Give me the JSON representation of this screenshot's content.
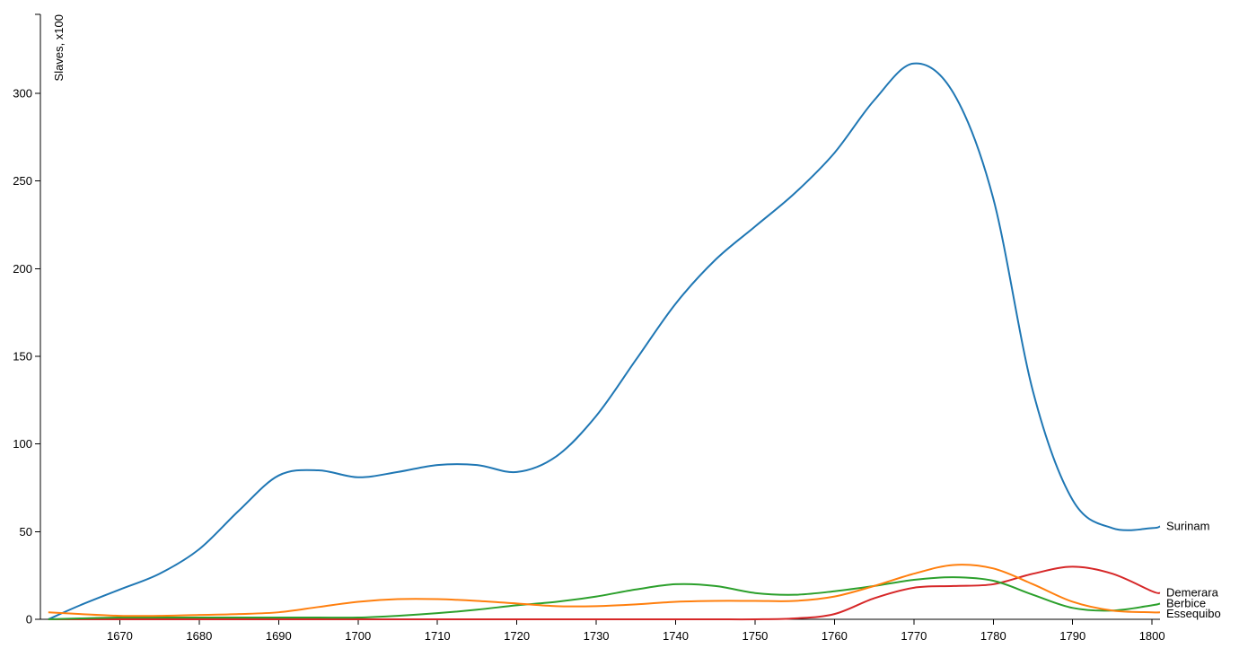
{
  "chart_data": {
    "type": "line",
    "title": "",
    "xlabel": "",
    "ylabel": "Slaves, x100",
    "xlim": [
      1660,
      1801
    ],
    "ylim": [
      0,
      345
    ],
    "grid": false,
    "legend": "inline-right",
    "xticks": [
      1670,
      1680,
      1690,
      1700,
      1710,
      1720,
      1730,
      1740,
      1750,
      1760,
      1770,
      1780,
      1790,
      1800
    ],
    "yticks": [
      0,
      50,
      100,
      150,
      200,
      250,
      300
    ],
    "x": [
      1661,
      1665,
      1670,
      1675,
      1680,
      1685,
      1690,
      1695,
      1700,
      1705,
      1710,
      1715,
      1720,
      1725,
      1730,
      1735,
      1740,
      1745,
      1750,
      1755,
      1760,
      1765,
      1770,
      1775,
      1780,
      1785,
      1790,
      1795,
      1800,
      1801
    ],
    "series": [
      {
        "name": "Surinam",
        "color": "#1f77b4",
        "values": [
          0,
          8,
          17,
          26,
          40,
          62,
          82,
          85,
          81,
          84,
          88,
          88,
          84,
          93,
          116,
          148,
          180,
          205,
          224,
          243,
          266,
          296,
          317,
          300,
          240,
          130,
          68,
          52,
          52,
          53
        ]
      },
      {
        "name": "Demerara",
        "color": "#d62728",
        "values": [
          0,
          0,
          0,
          0,
          0,
          0,
          0,
          0,
          0,
          0,
          0,
          0,
          0,
          0,
          0,
          0,
          0,
          0,
          0,
          0.5,
          3,
          12,
          18,
          19,
          20,
          26,
          30,
          26,
          16,
          15
        ]
      },
      {
        "name": "Berbice",
        "color": "#2ca02c",
        "values": [
          0,
          0.5,
          1,
          1,
          1,
          1,
          1,
          1,
          1,
          2,
          3.5,
          5.5,
          8,
          10,
          13,
          17,
          20,
          19,
          15,
          14,
          16,
          19,
          22.5,
          24,
          22,
          14,
          6.5,
          5,
          8,
          9
        ]
      },
      {
        "name": "Essequibo",
        "color": "#ff7f0e",
        "values": [
          4,
          3,
          2,
          2,
          2.5,
          3,
          4,
          7,
          10,
          11.5,
          11.5,
          10.5,
          9,
          7.5,
          7.5,
          8.5,
          10,
          10.5,
          10.5,
          10.5,
          13,
          19,
          26,
          31,
          29,
          20,
          10,
          5,
          4,
          4
        ]
      }
    ]
  }
}
